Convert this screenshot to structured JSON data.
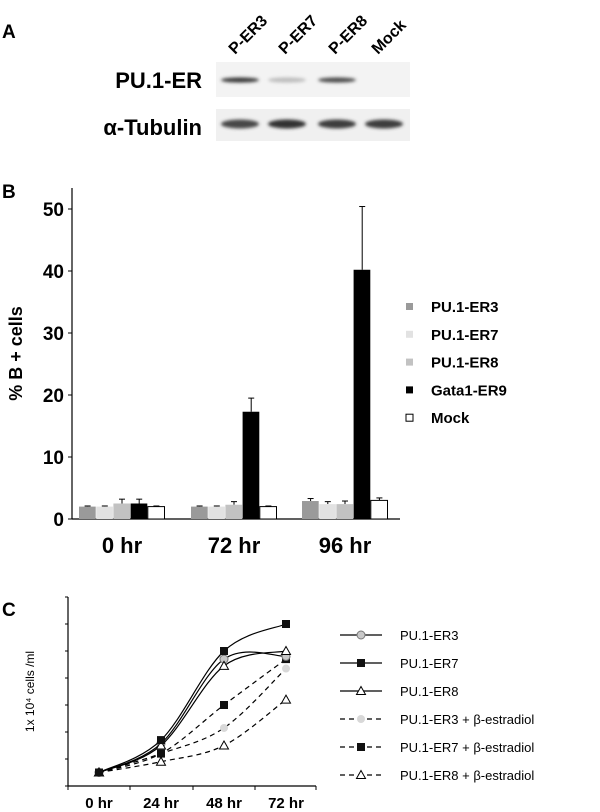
{
  "panels": {
    "a": "A",
    "b": "B",
    "c": "C"
  },
  "blot": {
    "lanes": [
      "P-ER3",
      "P-ER7",
      "P-ER8",
      "Mock"
    ],
    "rows": [
      {
        "label": "PU.1-ER",
        "intensities": [
          0.85,
          0.2,
          0.75,
          0
        ]
      },
      {
        "label": "α-Tubulin",
        "intensities": [
          0.8,
          0.9,
          0.85,
          0.85
        ]
      }
    ]
  },
  "chart_data": [
    {
      "type": "bar",
      "title": "",
      "xlabel": "",
      "ylabel": "% B + cells",
      "ylim": [
        0,
        50
      ],
      "yticks": [
        "0",
        "10",
        "20",
        "30",
        "40",
        "50"
      ],
      "categories": [
        "0 hr",
        "72 hr",
        "96 hr"
      ],
      "legend_position": "right",
      "series": [
        {
          "name": "PU.1-ER3",
          "color": "#9a9a9a",
          "values": [
            2.0,
            2.0,
            2.9
          ],
          "errors": [
            0.1,
            0.1,
            0.4
          ]
        },
        {
          "name": "PU.1-ER7",
          "color": "#e2e2e2",
          "values": [
            2.0,
            2.0,
            2.4
          ],
          "errors": [
            0.1,
            0.1,
            0.4
          ]
        },
        {
          "name": "PU.1-ER8",
          "color": "#c2c2c2",
          "values": [
            2.5,
            2.3,
            2.4
          ],
          "errors": [
            0.7,
            0.5,
            0.5
          ]
        },
        {
          "name": "Gata1-ER9",
          "color": "#000000",
          "values": [
            2.5,
            17.3,
            40.2
          ],
          "errors": [
            0.7,
            2.2,
            10.2
          ]
        },
        {
          "name": "Mock",
          "color": "#ffffff",
          "values": [
            2.0,
            2.0,
            3.0
          ],
          "errors": [
            0.1,
            0.1,
            0.4
          ]
        }
      ]
    },
    {
      "type": "line",
      "title": "",
      "xlabel": "",
      "ylabel": "1x 10⁴ cells /ml",
      "ylim": [
        0,
        7
      ],
      "categories": [
        "0 hr",
        "24 hr",
        "48 hr",
        "72 hr"
      ],
      "legend_position": "right",
      "series": [
        {
          "name": "PU.1-ER3",
          "marker": "circle",
          "fill": "#c8c8c8",
          "dashed": false,
          "values": [
            0.5,
            1.57,
            4.7,
            4.8
          ]
        },
        {
          "name": "PU.1-ER7",
          "marker": "square",
          "fill": "#111111",
          "dashed": false,
          "values": [
            0.5,
            1.7,
            5.0,
            6.0
          ]
        },
        {
          "name": "PU.1-ER8",
          "marker": "triangle",
          "fill": "#ffffff",
          "dashed": false,
          "values": [
            0.5,
            1.5,
            4.45,
            5.0
          ]
        },
        {
          "name": "PU.1-ER3 + β-estradiol",
          "marker": "circle",
          "fill": "#d8d8d8",
          "dashed": true,
          "values": [
            0.5,
            1.2,
            2.15,
            4.35
          ]
        },
        {
          "name": "PU.1-ER7 + β-estradiol",
          "marker": "square",
          "fill": "#111111",
          "dashed": true,
          "values": [
            0.5,
            1.2,
            3.0,
            4.7
          ]
        },
        {
          "name": "PU.1-ER8 + β-estradiol",
          "marker": "triangle",
          "fill": "#ffffff",
          "dashed": true,
          "values": [
            0.5,
            0.9,
            1.5,
            3.2
          ]
        }
      ]
    }
  ]
}
